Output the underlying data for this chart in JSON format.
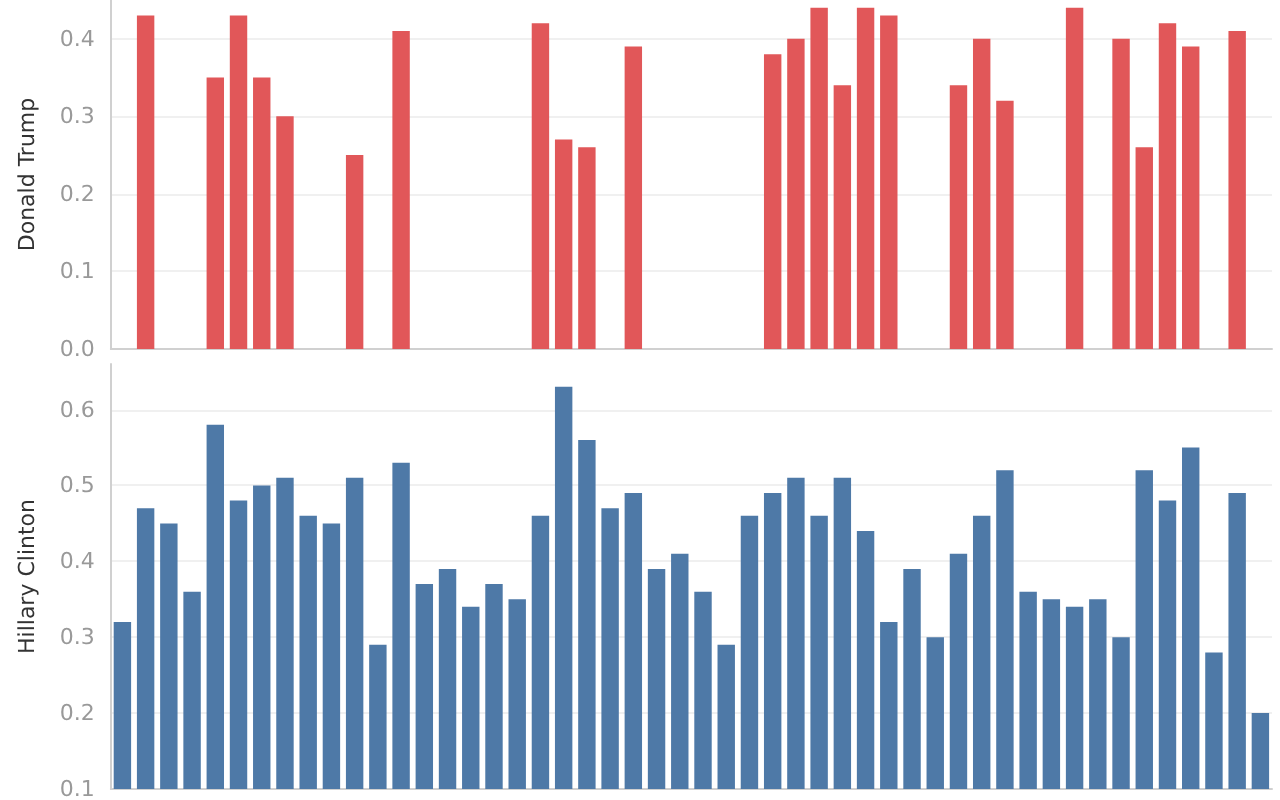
{
  "chart_data": [
    {
      "type": "bar",
      "ylabel": "Donald Trump",
      "categories": [
        null,
        null,
        null,
        null,
        null,
        null,
        null,
        null,
        null,
        null,
        null,
        null,
        null,
        null,
        null,
        null,
        null,
        null,
        null,
        null,
        null,
        null,
        null,
        null,
        null,
        null,
        null,
        null,
        null,
        null,
        null,
        null,
        null,
        null,
        null,
        null,
        null,
        null,
        null,
        null,
        null,
        null,
        null,
        null,
        null,
        null,
        null,
        null,
        null,
        null
      ],
      "series": [
        {
          "color": "#e15759",
          "values": [
            null,
            0.43,
            null,
            null,
            0.35,
            0.43,
            0.35,
            0.3,
            null,
            null,
            0.25,
            null,
            0.41,
            null,
            null,
            null,
            null,
            null,
            0.42,
            0.27,
            0.26,
            null,
            0.39,
            null,
            null,
            null,
            null,
            null,
            0.38,
            0.4,
            0.44,
            0.34,
            0.44,
            0.43,
            null,
            null,
            0.34,
            0.4,
            0.32,
            null,
            null,
            0.44,
            null,
            0.4,
            0.26,
            0.42,
            0.39,
            null,
            0.41,
            null
          ]
        }
      ],
      "ylim": [
        0,
        0.45
      ],
      "yticks": [
        {
          "value": 0,
          "label": "0.0"
        },
        0.1,
        0.2,
        0.3,
        0.4
      ],
      "grid": "y",
      "tick_labels": "y"
    },
    {
      "type": "bar",
      "ylabel": "Hillary Clinton",
      "categories": [
        null,
        null,
        null,
        null,
        null,
        null,
        null,
        null,
        null,
        null,
        null,
        null,
        null,
        null,
        null,
        null,
        null,
        null,
        null,
        null,
        null,
        null,
        null,
        null,
        null,
        null,
        null,
        null,
        null,
        null,
        null,
        null,
        null,
        null,
        null,
        null,
        null,
        null,
        null,
        null,
        null,
        null,
        null,
        null,
        null,
        null,
        null,
        null,
        null,
        null
      ],
      "series": [
        {
          "color": "#4e79a7",
          "values": [
            0.32,
            0.47,
            0.45,
            0.36,
            0.58,
            0.48,
            0.5,
            0.51,
            0.46,
            0.45,
            0.51,
            0.29,
            0.53,
            0.37,
            0.39,
            0.34,
            0.37,
            0.35,
            0.46,
            0.63,
            0.56,
            0.47,
            0.49,
            0.39,
            0.41,
            0.36,
            0.29,
            0.46,
            0.49,
            0.51,
            0.46,
            0.51,
            0.44,
            0.32,
            0.39,
            0.3,
            0.41,
            0.46,
            0.52,
            0.36,
            0.35,
            0.34,
            0.35,
            0.3,
            0.52,
            0.48,
            0.55,
            0.28,
            0.49,
            0.2
          ]
        }
      ],
      "ylim": [
        0.1,
        0.66
      ],
      "yticks": [
        0.1,
        0.2,
        0.3,
        0.4,
        0.5,
        0.6
      ],
      "grid": "y",
      "tick_labels": "y"
    }
  ]
}
